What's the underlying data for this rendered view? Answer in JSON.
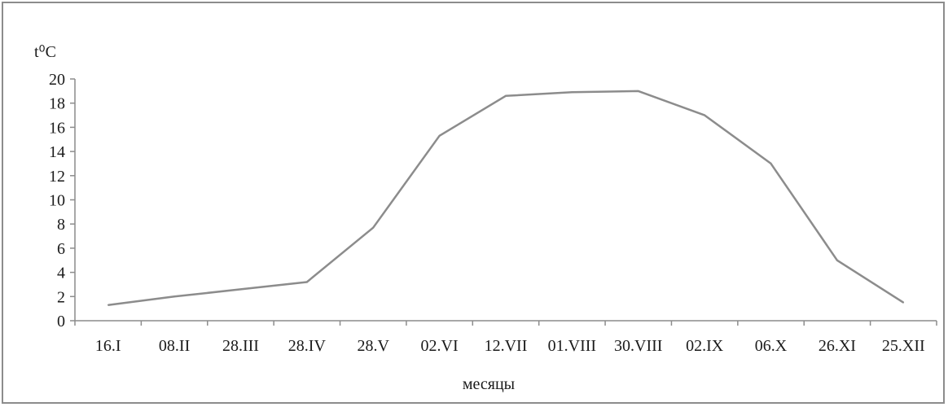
{
  "chart_data": {
    "type": "line",
    "title": "",
    "ylabel": "t⁰C",
    "xlabel": "месяцы",
    "categories": [
      "16.I",
      "08.II",
      "28.III",
      "28.IV",
      "28.V",
      "02.VI",
      "12.VII",
      "01.VIII",
      "30.VIII",
      "02.IX",
      "06.X",
      "26.XI",
      "25.XII"
    ],
    "values": [
      1.3,
      2.0,
      2.6,
      3.2,
      7.7,
      15.3,
      18.6,
      18.9,
      19.0,
      17.0,
      13.0,
      5.0,
      1.5
    ],
    "ylim": [
      0,
      20
    ],
    "yticks": [
      "0",
      "2",
      "4",
      "6",
      "8",
      "10",
      "12",
      "14",
      "16",
      "18",
      "20"
    ],
    "grid": false,
    "legend": "none",
    "line_color": "#8c8c8c"
  }
}
